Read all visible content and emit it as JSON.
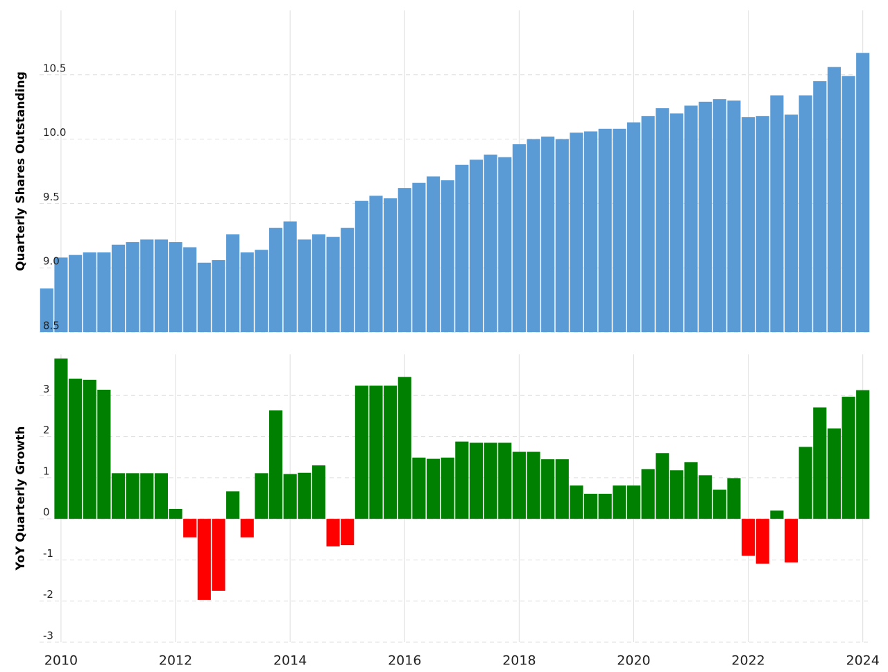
{
  "chart_data": [
    {
      "type": "bar",
      "ylabel": "Quarterly Shares Outstanding",
      "color": "#5b9bd5",
      "x": [
        2009.75,
        2010,
        2010.25,
        2010.5,
        2010.75,
        2011,
        2011.25,
        2011.5,
        2011.75,
        2012,
        2012.25,
        2012.5,
        2012.75,
        2013,
        2013.25,
        2013.5,
        2013.75,
        2014,
        2014.25,
        2014.5,
        2014.75,
        2015,
        2015.25,
        2015.5,
        2015.75,
        2016,
        2016.25,
        2016.5,
        2016.75,
        2017,
        2017.25,
        2017.5,
        2017.75,
        2018,
        2018.25,
        2018.5,
        2018.75,
        2019,
        2019.25,
        2019.5,
        2019.75,
        2020,
        2020.25,
        2020.5,
        2020.75,
        2021,
        2021.25,
        2021.5,
        2021.75,
        2022,
        2022.25,
        2022.5,
        2022.75,
        2023,
        2023.25,
        2023.5,
        2023.75,
        2024
      ],
      "values": [
        8.84,
        9.08,
        9.1,
        9.12,
        9.12,
        9.18,
        9.2,
        9.22,
        9.22,
        9.2,
        9.16,
        9.04,
        9.06,
        9.26,
        9.12,
        9.14,
        9.31,
        9.36,
        9.22,
        9.26,
        9.24,
        9.31,
        9.52,
        9.56,
        9.54,
        9.62,
        9.66,
        9.71,
        9.68,
        9.8,
        9.84,
        9.88,
        9.86,
        9.96,
        10.0,
        10.02,
        10.0,
        10.05,
        10.06,
        10.08,
        10.08,
        10.13,
        10.18,
        10.24,
        10.2,
        10.26,
        10.29,
        10.31,
        10.3,
        10.17,
        10.18,
        10.34,
        10.19,
        10.34,
        10.45,
        10.56,
        10.49,
        10.67
      ],
      "xlim": [
        2009.625,
        2024.125
      ],
      "xticks": [
        2010,
        2012,
        2014,
        2016,
        2018,
        2020,
        2022,
        2024
      ],
      "ylim": [
        8.5,
        11.0
      ],
      "yticks": [
        {
          "value": 8.5,
          "label": "8.5"
        },
        {
          "value": 9.0,
          "label": "9.0"
        },
        {
          "value": 9.5,
          "label": "9.5"
        },
        {
          "value": 10.0,
          "label": "10.0"
        },
        {
          "value": 10.5,
          "label": "10.5"
        }
      ],
      "grid": true
    },
    {
      "type": "bar",
      "ylabel": "YoY Quarterly Growth",
      "pos_color": "#008000",
      "neg_color": "#ff0000",
      "x": [
        2010,
        2010.25,
        2010.5,
        2010.75,
        2011,
        2011.25,
        2011.5,
        2011.75,
        2012,
        2012.25,
        2012.5,
        2012.75,
        2013,
        2013.25,
        2013.5,
        2013.75,
        2014,
        2014.25,
        2014.5,
        2014.75,
        2015,
        2015.25,
        2015.5,
        2015.75,
        2016,
        2016.25,
        2016.5,
        2016.75,
        2017,
        2017.25,
        2017.5,
        2017.75,
        2018,
        2018.25,
        2018.5,
        2018.75,
        2019,
        2019.25,
        2019.5,
        2019.75,
        2020,
        2020.25,
        2020.5,
        2020.75,
        2021,
        2021.25,
        2021.5,
        2021.75,
        2022,
        2022.25,
        2022.5,
        2022.75,
        2023,
        2023.25,
        2023.5,
        2023.75,
        2024
      ],
      "values": [
        3.9,
        3.41,
        3.38,
        3.14,
        1.11,
        1.11,
        1.11,
        1.11,
        0.24,
        -0.45,
        -1.97,
        -1.75,
        0.67,
        -0.45,
        1.11,
        2.64,
        1.09,
        1.12,
        1.3,
        -0.67,
        -0.64,
        3.24,
        3.24,
        3.24,
        3.45,
        1.49,
        1.46,
        1.49,
        1.88,
        1.85,
        1.85,
        1.85,
        1.63,
        1.63,
        1.45,
        1.45,
        0.81,
        0.61,
        0.61,
        0.81,
        0.81,
        1.21,
        1.6,
        1.18,
        1.38,
        1.06,
        0.71,
        0.99,
        -0.9,
        -1.09,
        0.2,
        -1.06,
        1.75,
        2.71,
        2.2,
        2.97,
        3.13
      ],
      "xlim": [
        2009.625,
        2024.125
      ],
      "xticks": [
        2010,
        2012,
        2014,
        2016,
        2018,
        2020,
        2022,
        2024
      ],
      "ylim": [
        -3,
        4
      ],
      "yticks": [
        -3,
        -2,
        -1,
        0,
        1,
        2,
        3
      ],
      "grid": true
    }
  ]
}
